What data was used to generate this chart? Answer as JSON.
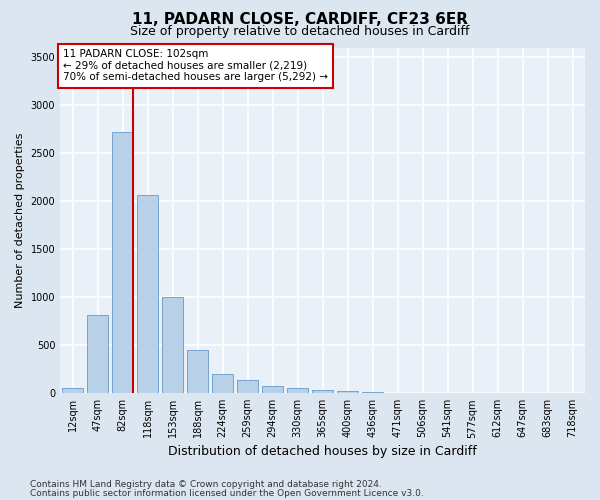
{
  "title1": "11, PADARN CLOSE, CARDIFF, CF23 6ER",
  "title2": "Size of property relative to detached houses in Cardiff",
  "xlabel": "Distribution of detached houses by size in Cardiff",
  "ylabel": "Number of detached properties",
  "categories": [
    "12sqm",
    "47sqm",
    "82sqm",
    "118sqm",
    "153sqm",
    "188sqm",
    "224sqm",
    "259sqm",
    "294sqm",
    "330sqm",
    "365sqm",
    "400sqm",
    "436sqm",
    "471sqm",
    "506sqm",
    "541sqm",
    "577sqm",
    "612sqm",
    "647sqm",
    "683sqm",
    "718sqm"
  ],
  "values": [
    50,
    810,
    2720,
    2060,
    1000,
    455,
    205,
    135,
    72,
    55,
    38,
    22,
    10,
    6,
    4,
    3,
    2,
    1,
    1,
    0,
    0
  ],
  "bar_color": "#b8d0e8",
  "bar_edge_color": "#6699cc",
  "red_line_index": 2,
  "annotation_line1": "11 PADARN CLOSE: 102sqm",
  "annotation_line2": "← 29% of detached houses are smaller (2,219)",
  "annotation_line3": "70% of semi-detached houses are larger (5,292) →",
  "annotation_box_color": "#ffffff",
  "annotation_box_edge": "#cc0000",
  "ylim": [
    0,
    3600
  ],
  "yticks": [
    0,
    500,
    1000,
    1500,
    2000,
    2500,
    3000,
    3500
  ],
  "footer1": "Contains HM Land Registry data © Crown copyright and database right 2024.",
  "footer2": "Contains public sector information licensed under the Open Government Licence v3.0.",
  "bg_color": "#dce6f0",
  "plot_bg_color": "#eaf0f8",
  "grid_color": "#ffffff",
  "title1_fontsize": 11,
  "title2_fontsize": 9,
  "xlabel_fontsize": 9,
  "ylabel_fontsize": 8,
  "tick_fontsize": 7,
  "annot_fontsize": 7.5,
  "footer_fontsize": 6.5
}
